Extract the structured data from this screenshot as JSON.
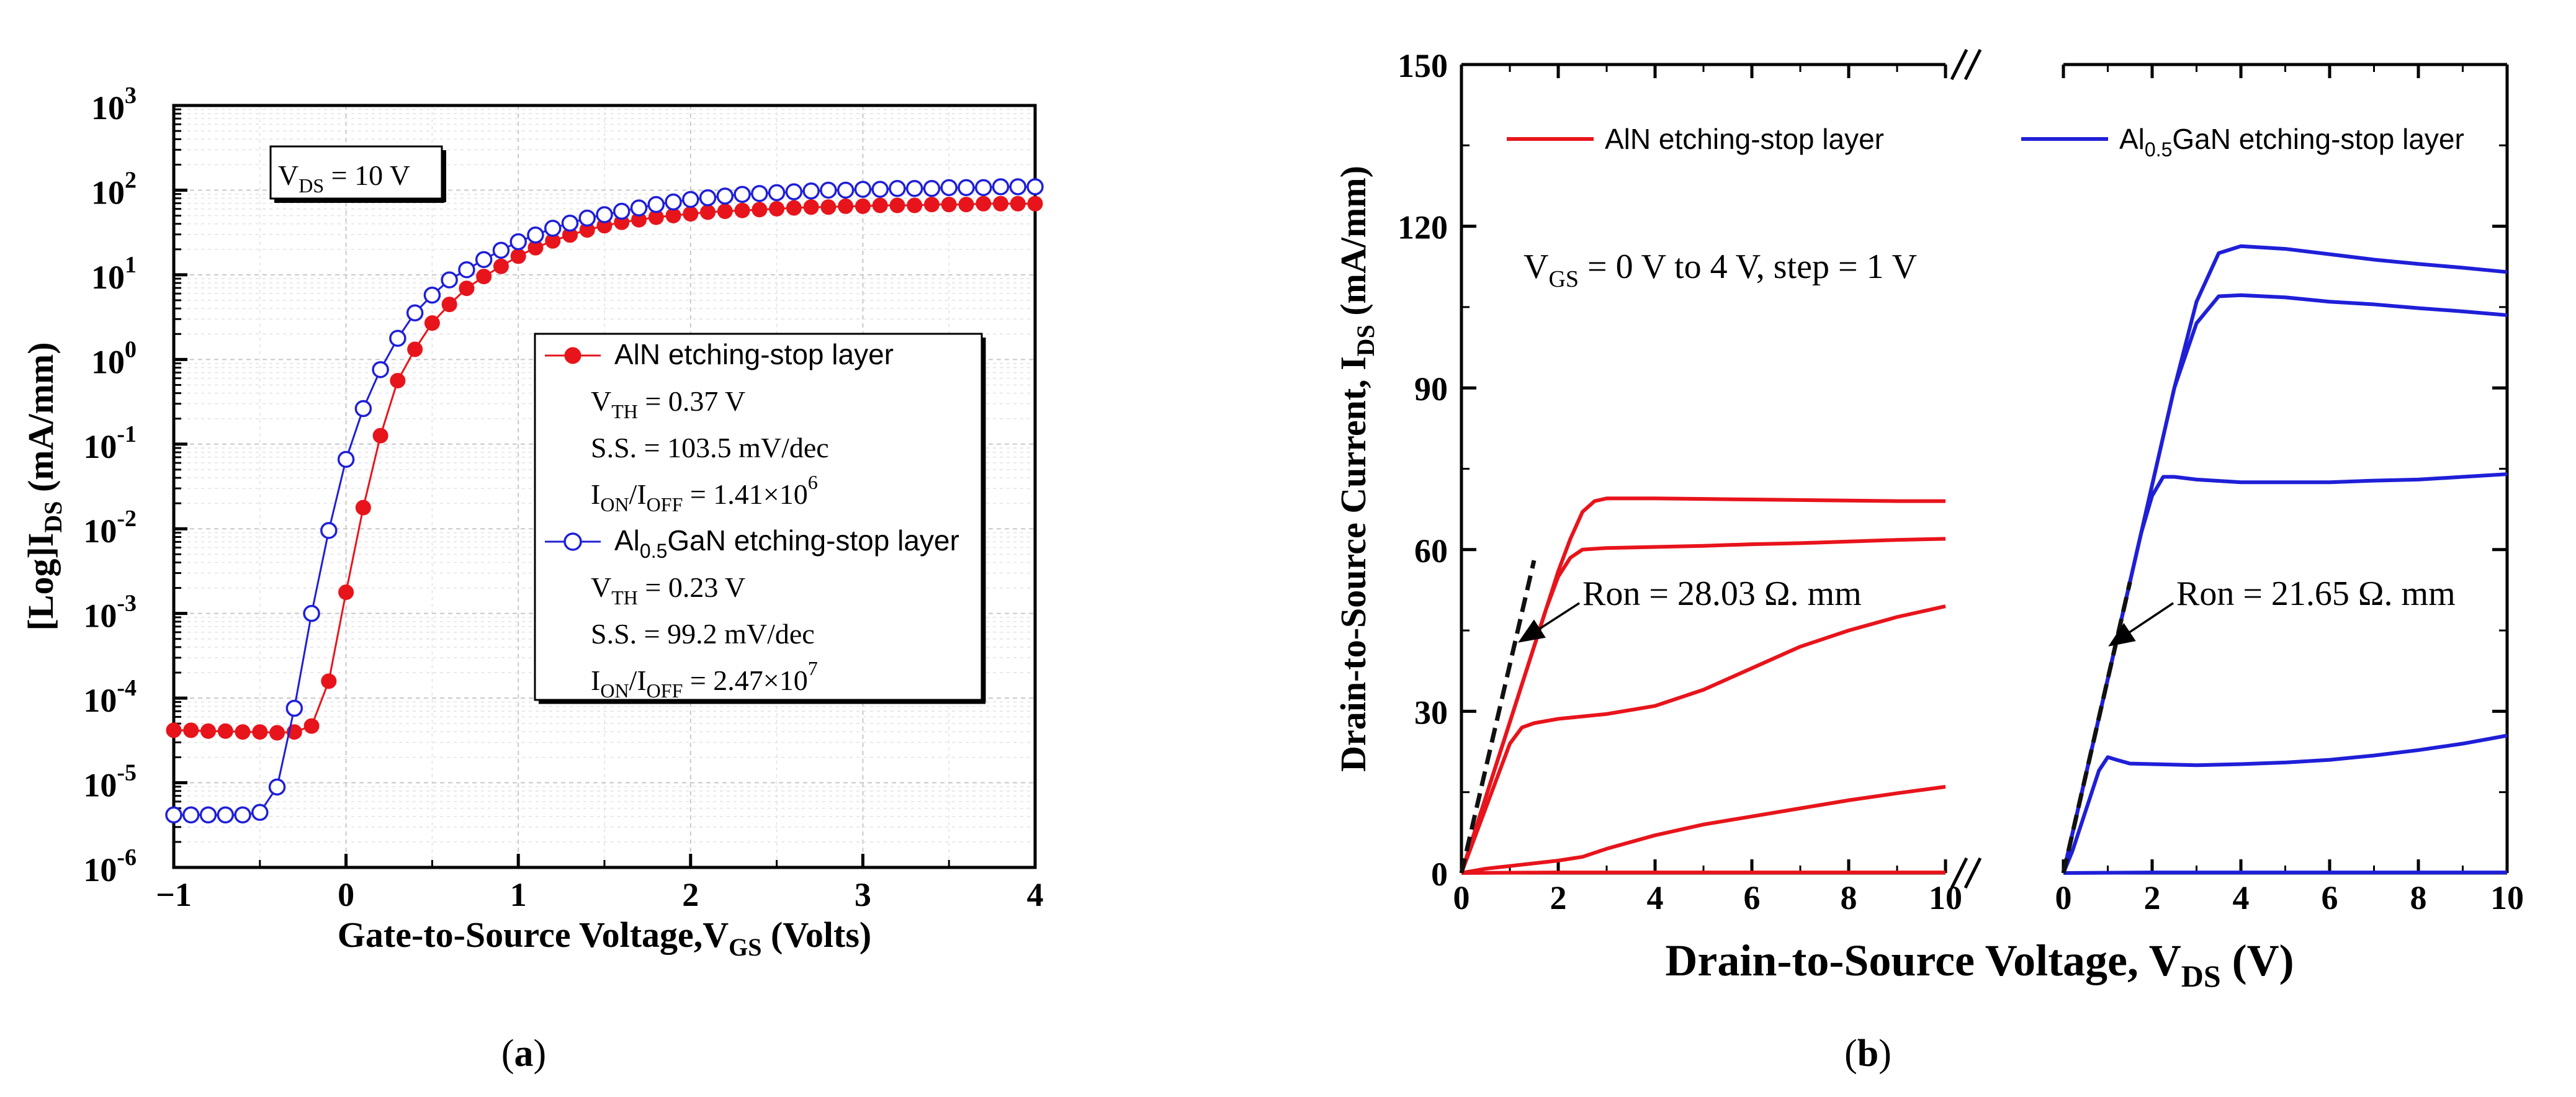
{
  "chart_data": [
    {
      "type": "scatter",
      "panel_label": "(a)",
      "title": "",
      "xlabel": "Gate-to-Source Voltage,V",
      "xlabel_sub": "GS",
      "xlabel_suffix": " (Volts)",
      "ylabel": "[Log]I",
      "ylabel_sub": "DS",
      "ylabel_suffix": " (mA/mm)",
      "xlim": [
        -1,
        4
      ],
      "ylim_log10": [
        -6,
        3
      ],
      "yscale": "log",
      "x_ticks": [
        "−1",
        "0",
        "1",
        "2",
        "3",
        "4"
      ],
      "y_tick_exponents": [
        "-6",
        "-5",
        "-4",
        "-3",
        "-2",
        "-1",
        "0",
        "1",
        "2",
        "3"
      ],
      "grid": true,
      "condition_label": "V",
      "condition_sub": "DS",
      "condition_suffix": " = 10 V",
      "series": [
        {
          "name": "AlN etching-stop layer",
          "color": "#e8141b",
          "marker": "filled-circle",
          "metrics": [
            {
              "label": "V",
              "sub": "TH",
              "rest": " = 0.37 V"
            },
            {
              "label": "S.S. = 103.5 mV/dec",
              "sub": "",
              "rest": ""
            },
            {
              "label": "I",
              "sub": "ON",
              "mid": "/I",
              "sub2": "OFF",
              "rest": " = 1.41×10",
              "sup": "6"
            }
          ],
          "x": [
            -1.0,
            -0.9,
            -0.8,
            -0.7,
            -0.6,
            -0.5,
            -0.4,
            -0.3,
            -0.2,
            -0.1,
            0.0,
            0.1,
            0.2,
            0.3,
            0.4,
            0.5,
            0.6,
            0.7,
            0.8,
            0.9,
            1.0,
            1.1,
            1.2,
            1.3,
            1.4,
            1.5,
            1.6,
            1.7,
            1.8,
            1.9,
            2.0,
            2.1,
            2.2,
            2.3,
            2.4,
            2.5,
            2.6,
            2.7,
            2.8,
            2.9,
            3.0,
            3.1,
            3.2,
            3.3,
            3.4,
            3.5,
            3.6,
            3.7,
            3.8,
            3.9,
            4.0
          ],
          "log10_y": [
            -4.38,
            -4.38,
            -4.39,
            -4.39,
            -4.4,
            -4.4,
            -4.41,
            -4.4,
            -4.33,
            -3.8,
            -2.75,
            -1.75,
            -0.9,
            -0.25,
            0.12,
            0.43,
            0.65,
            0.84,
            0.98,
            1.1,
            1.22,
            1.32,
            1.4,
            1.47,
            1.53,
            1.58,
            1.62,
            1.65,
            1.68,
            1.7,
            1.72,
            1.74,
            1.75,
            1.76,
            1.77,
            1.78,
            1.79,
            1.8,
            1.8,
            1.81,
            1.81,
            1.82,
            1.82,
            1.82,
            1.83,
            1.83,
            1.83,
            1.84,
            1.84,
            1.84,
            1.84
          ]
        },
        {
          "name": "Al",
          "name_sub": "0.5",
          "name_rest": "GaN etching-stop layer",
          "color": "#1f1fd8",
          "marker": "open-circle",
          "metrics": [
            {
              "label": "V",
              "sub": "TH",
              "rest": " = 0.23 V"
            },
            {
              "label": "S.S. = 99.2 mV/dec",
              "sub": "",
              "rest": ""
            },
            {
              "label": "I",
              "sub": "ON",
              "mid": "/I",
              "sub2": "OFF",
              "rest": " = 2.47×10",
              "sup": "7"
            }
          ],
          "x": [
            -1.0,
            -0.9,
            -0.8,
            -0.7,
            -0.6,
            -0.5,
            -0.4,
            -0.3,
            -0.2,
            -0.1,
            0.0,
            0.1,
            0.2,
            0.3,
            0.4,
            0.5,
            0.6,
            0.7,
            0.8,
            0.9,
            1.0,
            1.1,
            1.2,
            1.3,
            1.4,
            1.5,
            1.6,
            1.7,
            1.8,
            1.9,
            2.0,
            2.1,
            2.2,
            2.3,
            2.4,
            2.5,
            2.6,
            2.7,
            2.8,
            2.9,
            3.0,
            3.1,
            3.2,
            3.3,
            3.4,
            3.5,
            3.6,
            3.7,
            3.8,
            3.9,
            4.0
          ],
          "log10_y": [
            -5.38,
            -5.38,
            -5.38,
            -5.38,
            -5.38,
            -5.35,
            -5.05,
            -4.12,
            -3.0,
            -2.02,
            -1.18,
            -0.58,
            -0.12,
            0.25,
            0.55,
            0.76,
            0.94,
            1.06,
            1.18,
            1.29,
            1.39,
            1.47,
            1.55,
            1.61,
            1.67,
            1.71,
            1.75,
            1.79,
            1.83,
            1.86,
            1.89,
            1.91,
            1.93,
            1.95,
            1.96,
            1.97,
            1.98,
            1.99,
            2.0,
            2.0,
            2.01,
            2.01,
            2.02,
            2.02,
            2.02,
            2.03,
            2.03,
            2.03,
            2.04,
            2.04,
            2.04
          ]
        }
      ]
    },
    {
      "type": "line",
      "panel_label": "(b)",
      "title": "",
      "xlabel": "Drain-to-Source Voltage, V",
      "xlabel_sub": "DS",
      "xlabel_suffix": " (V)",
      "ylabel": "Drain-to-Source Current, I",
      "ylabel_sub": "DS",
      "ylabel_suffix": " (mA/mm)",
      "ylim": [
        0,
        150
      ],
      "x_ticks": [
        "0",
        "2",
        "4",
        "6",
        "8",
        "10"
      ],
      "y_ticks": [
        "0",
        "30",
        "60",
        "90",
        "120",
        "150"
      ],
      "broken_x_axis": true,
      "condition_text": "V",
      "condition_sub": "GS",
      "condition_rest": " = 0 V to 4 V, step = 1 V",
      "legend": [
        {
          "name": "AlN etching-stop layer",
          "color": "#e8141b"
        },
        {
          "name": "Al",
          "sub": "0.5",
          "rest": "GaN etching-stop layer",
          "color": "#1f1fd8"
        }
      ],
      "annotations": [
        {
          "text": "Ron = 28.03 Ω.   mm",
          "segment": "AlN"
        },
        {
          "text": "Ron = 21.65 Ω.   mm",
          "segment": "AlGaN"
        }
      ],
      "segments": [
        {
          "name": "AlN etching-stop layer",
          "color": "#e8141b",
          "xlim": [
            0,
            10
          ],
          "curves": [
            {
              "vgs": 0,
              "x": [
                0,
                2,
                4,
                6,
                8,
                10
              ],
              "y": [
                0,
                0.1,
                0.1,
                0.1,
                0.1,
                0.1
              ]
            },
            {
              "vgs": 1,
              "x": [
                0,
                0.5,
                1,
                1.5,
                2,
                2.5,
                3,
                4,
                5,
                6,
                7,
                8,
                9,
                10
              ],
              "y": [
                0,
                0.8,
                1.3,
                1.8,
                2.3,
                3,
                4.5,
                7,
                9,
                10.5,
                12,
                13.5,
                14.8,
                16
              ]
            },
            {
              "vgs": 2,
              "x": [
                0,
                0.25,
                0.5,
                0.75,
                1,
                1.25,
                1.5,
                2,
                3,
                4,
                5,
                6,
                7,
                8,
                9,
                10
              ],
              "y": [
                0,
                6,
                12,
                18,
                24,
                27,
                27.8,
                28.6,
                29.5,
                31,
                34,
                38,
                42,
                45,
                47.5,
                49.5
              ]
            },
            {
              "vgs": 3,
              "x": [
                0,
                0.25,
                0.5,
                0.75,
                1,
                1.25,
                1.5,
                1.75,
                2,
                2.25,
                2.5,
                3,
                4,
                5,
                6,
                7,
                8,
                9,
                10
              ],
              "y": [
                0,
                7,
                14,
                21,
                28,
                35,
                42,
                49,
                55,
                58.5,
                60,
                60.3,
                60.5,
                60.7,
                61,
                61.2,
                61.5,
                61.8,
                62
              ]
            },
            {
              "vgs": 4,
              "x": [
                0,
                0.25,
                0.5,
                0.75,
                1,
                1.25,
                1.5,
                1.75,
                2,
                2.25,
                2.5,
                2.75,
                3,
                4,
                5,
                6,
                7,
                8,
                9,
                10
              ],
              "y": [
                0,
                7,
                14,
                21,
                28,
                35,
                42,
                49,
                56,
                62,
                67,
                69,
                69.5,
                69.5,
                69.4,
                69.3,
                69.2,
                69.1,
                69,
                69
              ]
            }
          ],
          "fit_line": {
            "x": [
              0,
              1.5
            ],
            "y": [
              0,
              58
            ]
          }
        },
        {
          "name": "Al0.5GaN etching-stop layer",
          "color": "#1f1fd8",
          "xlim": [
            0,
            10
          ],
          "curves": [
            {
              "vgs": 0,
              "x": [
                0,
                2,
                4,
                6,
                8,
                10
              ],
              "y": [
                0,
                0.1,
                0.1,
                0.1,
                0.1,
                0.1
              ]
            },
            {
              "vgs": 1,
              "x": [
                0,
                0.2,
                0.4,
                0.6,
                0.8,
                1,
                1.2,
                1.5,
                2,
                3,
                4,
                5,
                6,
                7,
                8,
                9,
                10
              ],
              "y": [
                0,
                4,
                9,
                14,
                19,
                21.5,
                21,
                20.3,
                20.2,
                20,
                20.2,
                20.5,
                21,
                21.8,
                22.8,
                24,
                25.5
              ]
            },
            {
              "vgs": 2,
              "x": [
                0,
                0.25,
                0.5,
                0.75,
                1,
                1.25,
                1.5,
                1.75,
                2,
                2.25,
                2.5,
                3,
                4,
                5,
                6,
                7,
                8,
                9,
                10
              ],
              "y": [
                0,
                9,
                18,
                27,
                36,
                45,
                54,
                63,
                70,
                73.5,
                73.5,
                73,
                72.5,
                72.5,
                72.5,
                72.8,
                73,
                73.5,
                74
              ]
            },
            {
              "vgs": 3,
              "x": [
                0,
                0.25,
                0.5,
                0.75,
                1,
                1.25,
                1.5,
                1.75,
                2,
                2.25,
                2.5,
                3,
                3.5,
                4,
                5,
                6,
                7,
                8,
                9,
                10
              ],
              "y": [
                0,
                9,
                18,
                27,
                36,
                45,
                54,
                63,
                72,
                81,
                90,
                102,
                107,
                107.2,
                106.8,
                106,
                105.5,
                104.8,
                104.2,
                103.5
              ]
            },
            {
              "vgs": 4,
              "x": [
                0,
                0.25,
                0.5,
                0.75,
                1,
                1.25,
                1.5,
                1.75,
                2,
                2.25,
                2.5,
                3,
                3.5,
                4,
                5,
                6,
                7,
                8,
                9,
                10
              ],
              "y": [
                0,
                9,
                18,
                27,
                36,
                45,
                54,
                63,
                72,
                81,
                90,
                106,
                115,
                116.3,
                115.8,
                114.8,
                113.8,
                113,
                112.3,
                111.5
              ]
            }
          ],
          "fit_line": {
            "x": [
              0,
              1.5
            ],
            "y": [
              0,
              54
            ]
          }
        }
      ]
    }
  ]
}
